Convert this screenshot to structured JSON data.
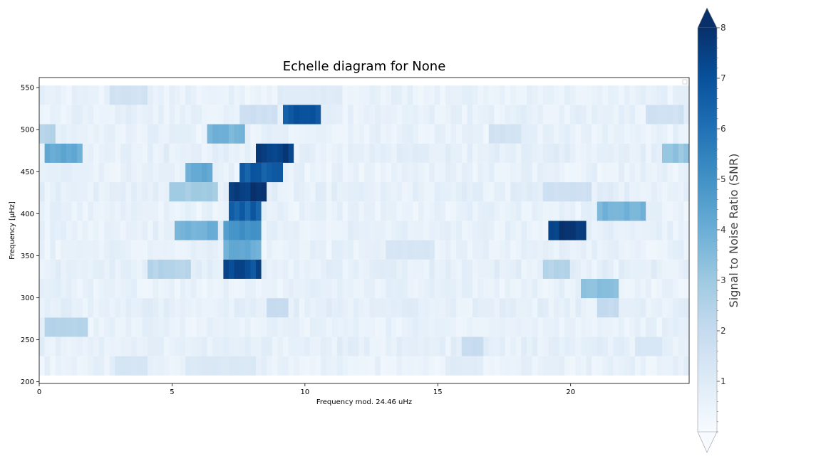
{
  "chart_data": {
    "type": "heatmap",
    "title": "Echelle diagram for None",
    "xlabel": "Frequency mod. 24.46 uHz",
    "ylabel": "Frequency [µHz]",
    "xlim": [
      0,
      24.46
    ],
    "ylim": [
      198,
      562
    ],
    "x_ticks": [
      0,
      5,
      10,
      15,
      20
    ],
    "y_ticks": [
      200,
      250,
      300,
      350,
      400,
      450,
      500,
      550
    ],
    "colorbar": {
      "label": "Signal to Noise Ratio (SNR)",
      "colormap": "Blues",
      "range": [
        0,
        8
      ],
      "ticks": [
        1,
        2,
        3,
        4,
        5,
        6,
        7,
        8
      ],
      "extend": "both"
    },
    "legend_placement": "upper right (empty)",
    "row_spacing": 23,
    "row_centers": [
      219,
      242,
      265,
      288,
      311,
      334,
      357,
      380,
      403,
      426,
      449,
      472,
      495,
      518,
      541
    ],
    "base_snr": [
      0.3,
      0.4,
      0.3,
      0.4,
      0.3,
      0.4,
      0.3,
      0.35,
      0.3,
      0.4,
      0.3,
      0.4,
      0.3,
      0.35,
      0.3
    ],
    "features": [
      {
        "row": 0,
        "x0": 2.8,
        "x1": 4.0,
        "snr": 1.5
      },
      {
        "row": 0,
        "x0": 5.6,
        "x1": 8.2,
        "snr": 1.2
      },
      {
        "row": 0,
        "x0": 15.2,
        "x1": 16.8,
        "snr": 1.0
      },
      {
        "row": 1,
        "x0": 16.0,
        "x1": 16.8,
        "snr": 2.0
      },
      {
        "row": 1,
        "x0": 22.5,
        "x1": 23.5,
        "snr": 1.3
      },
      {
        "row": 2,
        "x0": 0.3,
        "x1": 1.8,
        "snr": 2.6
      },
      {
        "row": 3,
        "x0": 8.5,
        "x1": 9.4,
        "snr": 2.0
      },
      {
        "row": 3,
        "x0": 21.0,
        "x1": 21.8,
        "snr": 2.1
      },
      {
        "row": 4,
        "x0": 20.4,
        "x1": 21.8,
        "snr": 3.5
      },
      {
        "row": 5,
        "x0": 4.0,
        "x1": 5.8,
        "snr": 2.6
      },
      {
        "row": 5,
        "x0": 7.0,
        "x1": 8.3,
        "snr": 7.6
      },
      {
        "row": 5,
        "x0": 19.0,
        "x1": 20.0,
        "snr": 2.6
      },
      {
        "row": 6,
        "x0": 7.0,
        "x1": 8.3,
        "snr": 4.3
      },
      {
        "row": 6,
        "x0": 13.0,
        "x1": 14.8,
        "snr": 1.4
      },
      {
        "row": 7,
        "x0": 5.0,
        "x1": 6.8,
        "snr": 4.2
      },
      {
        "row": 7,
        "x0": 7.0,
        "x1": 8.3,
        "snr": 5.2
      },
      {
        "row": 7,
        "x0": 19.1,
        "x1": 20.6,
        "snr": 8.0
      },
      {
        "row": 8,
        "x0": 7.1,
        "x1": 8.4,
        "snr": 7.0
      },
      {
        "row": 8,
        "x0": 21.0,
        "x1": 22.8,
        "snr": 4.0
      },
      {
        "row": 9,
        "x0": 4.8,
        "x1": 6.8,
        "snr": 3.0
      },
      {
        "row": 9,
        "x0": 7.1,
        "x1": 8.6,
        "snr": 8.0
      },
      {
        "row": 9,
        "x0": 19.0,
        "x1": 20.8,
        "snr": 1.8
      },
      {
        "row": 10,
        "x0": 5.5,
        "x1": 6.5,
        "snr": 4.4
      },
      {
        "row": 10,
        "x0": 7.5,
        "x1": 9.2,
        "snr": 7.2
      },
      {
        "row": 11,
        "x0": 0.3,
        "x1": 1.7,
        "snr": 4.4
      },
      {
        "row": 11,
        "x0": 8.1,
        "x1": 9.6,
        "snr": 8.0
      },
      {
        "row": 11,
        "x0": 23.5,
        "x1": 24.4,
        "snr": 3.4
      },
      {
        "row": 12,
        "x0": 0.0,
        "x1": 0.6,
        "snr": 2.6
      },
      {
        "row": 12,
        "x0": 6.3,
        "x1": 7.8,
        "snr": 4.0
      },
      {
        "row": 12,
        "x0": 17.0,
        "x1": 18.2,
        "snr": 1.6
      },
      {
        "row": 13,
        "x0": 7.5,
        "x1": 9.0,
        "snr": 1.8
      },
      {
        "row": 13,
        "x0": 9.2,
        "x1": 10.7,
        "snr": 7.3
      },
      {
        "row": 13,
        "x0": 22.8,
        "x1": 24.2,
        "snr": 1.7
      },
      {
        "row": 14,
        "x0": 2.7,
        "x1": 4.1,
        "snr": 1.6
      },
      {
        "row": 14,
        "x0": 9.0,
        "x1": 11.5,
        "snr": 1.0
      }
    ]
  }
}
